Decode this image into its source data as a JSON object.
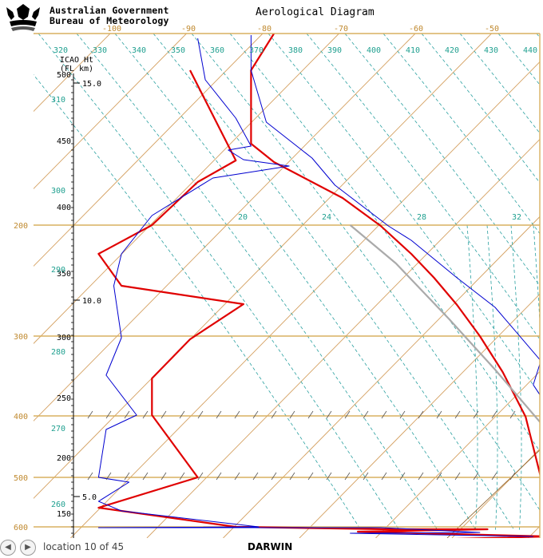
{
  "header": {
    "org_line1": "Australian Government",
    "org_line2": "Bureau of Meteorology",
    "title": "Aerological Diagram"
  },
  "footer": {
    "location_text": "location 10 of 45",
    "station": "DARWIN",
    "prev_icon": "chevron-left-icon",
    "next_icon": "chevron-right-icon"
  },
  "chart_data": {
    "type": "line",
    "title": "Aerological Diagram",
    "subtitle": "DARWIN",
    "y_axis_label": "ICAO Ht (FL km)",
    "temperature_ticks": [
      "-100",
      "-90",
      "-80",
      "-70",
      "-60",
      "-50"
    ],
    "theta_ticks": [
      "320",
      "330",
      "340",
      "350",
      "360",
      "370",
      "380",
      "390",
      "400",
      "410",
      "420",
      "430",
      "440"
    ],
    "theta_left_ticks": [
      "310",
      "300",
      "290",
      "280",
      "270",
      "260"
    ],
    "pressure_ticks": [
      "200",
      "300",
      "400",
      "500",
      "600"
    ],
    "flight_level_ticks": [
      "500",
      "450",
      "400",
      "350",
      "300",
      "250",
      "200",
      "150"
    ],
    "km_ticks": [
      "15.0",
      "10.0",
      "5.0"
    ],
    "mixing_ratio_ticks": [
      "20",
      "24",
      "28",
      "32"
    ],
    "series": [
      {
        "color": "#e00000",
        "points": [
          [
            -91,
            88
          ],
          [
            -85,
            201
          ],
          [
            -90,
            228
          ],
          [
            -96,
            282
          ],
          [
            -103,
            318
          ],
          [
            -100,
            358
          ],
          [
            -84,
            381
          ],
          [
            -91,
            425
          ],
          [
            -96,
            474
          ],
          [
            -96,
            520
          ],
          [
            -90,
            598
          ],
          [
            -103,
            636
          ],
          [
            -85,
            660
          ],
          [
            -65,
            663
          ],
          [
            -52,
            663
          ],
          [
            -69,
            666
          ],
          [
            -44,
            672
          ],
          [
            -64,
            677
          ],
          [
            -49,
            688
          ]
        ]
      },
      {
        "color": "#e00000",
        "points": [
          [
            -80,
            42
          ],
          [
            -83,
            88
          ],
          [
            -83,
            180
          ],
          [
            -80,
            203
          ],
          [
            -71,
            248
          ],
          [
            -66,
            283
          ],
          [
            -62,
            318
          ],
          [
            -59,
            348
          ],
          [
            -56,
            382
          ],
          [
            -53,
            421
          ],
          [
            -50,
            466
          ],
          [
            -47,
            522
          ],
          [
            -45,
            598
          ],
          [
            -42,
            638
          ],
          [
            -43,
            657
          ],
          [
            -43,
            669
          ]
        ]
      },
      {
        "color": "#0000d0",
        "points": [
          [
            -90,
            48
          ],
          [
            -89,
            100
          ],
          [
            -85,
            148
          ],
          [
            -83,
            183
          ],
          [
            -86,
            188
          ],
          [
            -84,
            200
          ],
          [
            -78,
            208
          ],
          [
            -88,
            223
          ],
          [
            -96,
            270
          ],
          [
            -100,
            318
          ],
          [
            -101,
            358
          ],
          [
            -100,
            423
          ],
          [
            -102,
            470
          ],
          [
            -98,
            520
          ],
          [
            -102,
            538
          ],
          [
            -103,
            598
          ],
          [
            -99,
            604
          ],
          [
            -103,
            628
          ],
          [
            -100,
            640
          ],
          [
            -82,
            660
          ],
          [
            -103,
            661
          ],
          [
            -66,
            661
          ],
          [
            -53,
            667
          ],
          [
            -70,
            668
          ],
          [
            -46,
            672
          ]
        ]
      },
      {
        "color": "#0000d0",
        "points": [
          [
            -83,
            44
          ],
          [
            -83,
            88
          ],
          [
            -81,
            153
          ],
          [
            -75,
            198
          ],
          [
            -72,
            232
          ],
          [
            -65,
            283
          ],
          [
            -62,
            301
          ],
          [
            -56,
            348
          ],
          [
            -51,
            385
          ],
          [
            -45,
            452
          ],
          [
            -46,
            482
          ],
          [
            -42,
            540
          ],
          [
            -40,
            598
          ],
          [
            -39,
            630
          ],
          [
            -40,
            640
          ],
          [
            -35,
            645
          ],
          [
            -38,
            659
          ],
          [
            -45,
            660
          ],
          [
            -40,
            662
          ],
          [
            -42,
            667
          ]
        ]
      },
      {
        "color": "#aaaaaa",
        "points": [
          [
            -70,
            282
          ],
          [
            -64,
            330
          ],
          [
            -57,
            400
          ],
          [
            -51,
            463
          ],
          [
            -45,
            530
          ],
          [
            -42,
            600
          ],
          [
            -40,
            640
          ],
          [
            -40,
            690
          ]
        ]
      }
    ]
  }
}
